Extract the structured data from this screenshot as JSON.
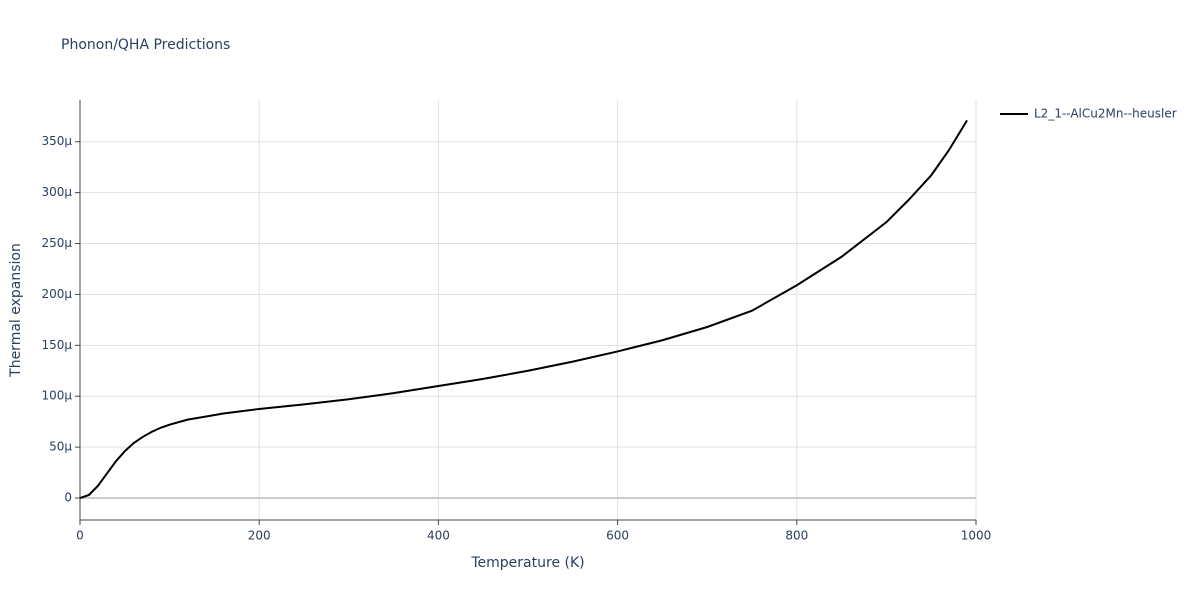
{
  "chart_data": {
    "type": "line",
    "title": "Phonon/QHA Predictions",
    "x_label": "Temperature (K)",
    "y_label": "Thermal expansion",
    "x": [
      0,
      10,
      20,
      30,
      40,
      50,
      60,
      70,
      80,
      90,
      100,
      120,
      140,
      160,
      200,
      250,
      300,
      350,
      400,
      450,
      500,
      550,
      600,
      650,
      700,
      750,
      800,
      850,
      900,
      925,
      950,
      970,
      990
    ],
    "series": [
      {
        "name": "L2_1--AlCu2Mn--heusler",
        "color": "#000000",
        "values": [
          0,
          3,
          12,
          24,
          36,
          46,
          54,
          60,
          65,
          69,
          72,
          77,
          80,
          83,
          87.5,
          92,
          97,
          103,
          110,
          117,
          125,
          134,
          144,
          155,
          168,
          184,
          209,
          237,
          271,
          293,
          317,
          342,
          371
        ]
      }
    ],
    "xlim": [
      0,
      1000
    ],
    "xticks": [
      0,
      200,
      400,
      600,
      800,
      1000
    ],
    "ylim": [
      -21.6,
      391
    ],
    "yticks": [
      0,
      {
        "value": 50,
        "label": "50μ"
      },
      {
        "value": 100,
        "label": "100μ"
      },
      {
        "value": 150,
        "label": "150μ"
      },
      {
        "value": 200,
        "label": "200μ"
      },
      {
        "value": 250,
        "label": "250μ"
      },
      {
        "value": 300,
        "label": "300μ"
      },
      {
        "value": 350,
        "label": "350μ"
      }
    ],
    "grid": true,
    "legend": "top-right"
  }
}
